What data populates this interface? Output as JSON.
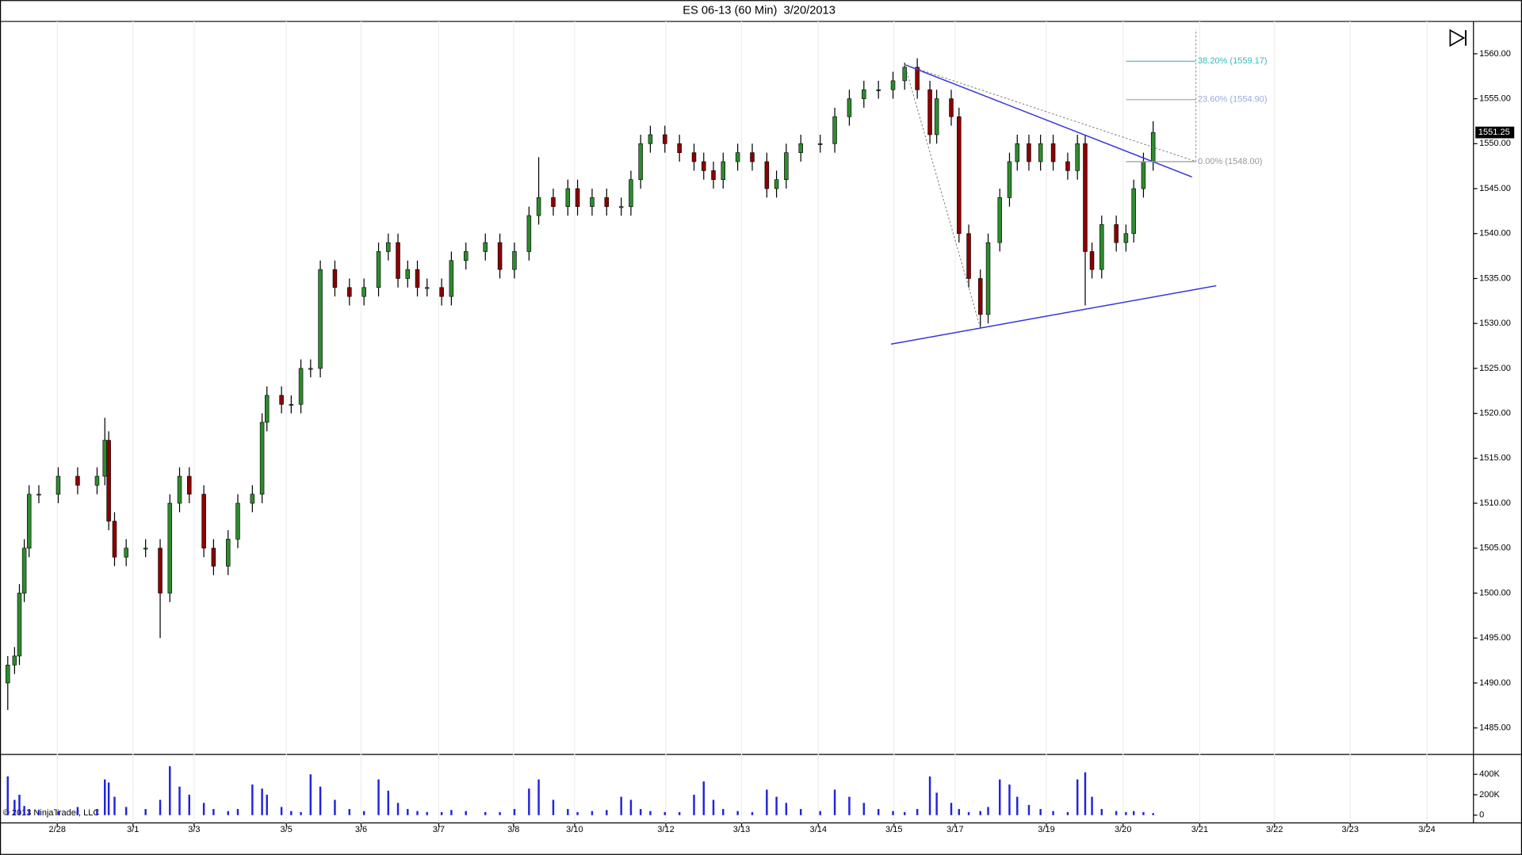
{
  "chart_data": {
    "type": "candlestick",
    "title": "ES 06-13 (60 Min)  3/20/2013",
    "copyright": "© 2013 NinjaTrader, LLC",
    "up_color": "#2e8b2e",
    "down_color": "#8b0000",
    "wick_color": "#000000",
    "x_grid": true,
    "xlim": [
      0.2,
      151.8
    ],
    "xticks": [
      {
        "value": 5.9,
        "label": "2/28"
      },
      {
        "value": 13.7,
        "label": "3/1"
      },
      {
        "value": 20.0,
        "label": "3/3"
      },
      {
        "value": 29.5,
        "label": "3/5"
      },
      {
        "value": 37.2,
        "label": "3/6"
      },
      {
        "value": 45.2,
        "label": "3/7"
      },
      {
        "value": 52.9,
        "label": "3/8"
      },
      {
        "value": 59.2,
        "label": "3/10"
      },
      {
        "value": 68.6,
        "label": "3/12"
      },
      {
        "value": 76.4,
        "label": "3/13"
      },
      {
        "value": 84.3,
        "label": "3/14"
      },
      {
        "value": 92.1,
        "label": "3/15"
      },
      {
        "value": 98.4,
        "label": "3/17"
      },
      {
        "value": 107.8,
        "label": "3/19"
      },
      {
        "value": 115.7,
        "label": "3/20"
      },
      {
        "value": 123.6,
        "label": "3/21"
      },
      {
        "value": 131.3,
        "label": "3/22"
      },
      {
        "value": 139.1,
        "label": "3/23"
      },
      {
        "value": 147.0,
        "label": "3/24"
      }
    ],
    "ylim": [
      1482.1,
      1563.6
    ],
    "yticks": [
      {
        "value": 1485,
        "label": "1485.00"
      },
      {
        "value": 1490,
        "label": "1490.00"
      },
      {
        "value": 1495,
        "label": "1495.00"
      },
      {
        "value": 1500,
        "label": "1500.00"
      },
      {
        "value": 1505,
        "label": "1505.00"
      },
      {
        "value": 1510,
        "label": "1510.00"
      },
      {
        "value": 1515,
        "label": "1515.00"
      },
      {
        "value": 1520,
        "label": "1520.00"
      },
      {
        "value": 1525,
        "label": "1525.00"
      },
      {
        "value": 1530,
        "label": "1530.00"
      },
      {
        "value": 1535,
        "label": "1535.00"
      },
      {
        "value": 1540,
        "label": "1540.00"
      },
      {
        "value": 1545,
        "label": "1545.00"
      },
      {
        "value": 1550,
        "label": "1550.00"
      },
      {
        "value": 1555,
        "label": "1555.00"
      },
      {
        "value": 1560,
        "label": "1560.00"
      }
    ],
    "x": [
      0.8,
      1.5,
      2,
      2.5,
      3,
      4,
      6,
      8,
      10,
      10.8,
      11.2,
      11.8,
      13,
      15,
      16.5,
      17.5,
      18.5,
      19.5,
      21,
      22,
      23.5,
      24.5,
      26,
      27,
      27.5,
      29,
      30,
      31,
      32,
      33,
      34.5,
      36,
      37.5,
      39,
      40,
      41,
      42,
      43,
      44,
      45.5,
      46.5,
      48,
      50,
      51.5,
      53,
      54.5,
      55.5,
      57,
      58.5,
      59.5,
      61,
      62.5,
      64,
      65,
      66,
      67,
      68.5,
      70,
      71.5,
      72.5,
      73.5,
      74.5,
      76,
      77.5,
      79,
      80,
      81,
      82.5,
      84.5,
      86,
      87.5,
      89,
      90.5,
      92,
      93.2,
      94.5,
      95.8,
      96.5,
      98,
      98.8,
      99.8,
      101,
      101.8,
      103,
      104,
      104.8,
      106,
      107.2,
      108.5,
      110,
      111,
      111.8,
      112.5,
      113.5,
      115,
      116,
      116.8,
      117.8,
      118.8
    ],
    "open": [
      1490,
      1492,
      1493,
      1500,
      1505,
      1511,
      1511,
      1513,
      1512,
      1513,
      1517,
      1508,
      1504,
      1505,
      1505,
      1500,
      1510,
      1513,
      1511,
      1505,
      1503,
      1506,
      1510,
      1511,
      1519,
      1522,
      1521,
      1521,
      1525,
      1525,
      1536,
      1534,
      1533,
      1534,
      1538,
      1539,
      1535,
      1536,
      1534,
      1534,
      1533,
      1537,
      1538,
      1539,
      1536,
      1538,
      1542,
      1544,
      1543,
      1545,
      1543,
      1544,
      1543,
      1543,
      1546,
      1550,
      1551,
      1550,
      1549,
      1548,
      1547,
      1546,
      1548,
      1549,
      1548,
      1545,
      1546,
      1549,
      1550,
      1550,
      1553,
      1555,
      1556,
      1556,
      1557,
      1558.5,
      1556,
      1551,
      1555,
      1553,
      1540,
      1535,
      1531,
      1539,
      1544,
      1548,
      1550,
      1548,
      1550,
      1548,
      1547,
      1550,
      1538,
      1536,
      1541,
      1539,
      1540,
      1545,
      1548
    ],
    "high": [
      1493,
      1494,
      1501,
      1506,
      1512,
      1512,
      1514,
      1514,
      1514,
      1519.5,
      1518,
      1509,
      1506,
      1506,
      1506,
      1511,
      1514,
      1514,
      1512,
      1506,
      1507,
      1511,
      1512,
      1520,
      1523,
      1523,
      1522,
      1526,
      1526,
      1537,
      1537,
      1535,
      1535,
      1539,
      1540,
      1540,
      1537,
      1537,
      1535,
      1535,
      1538,
      1539,
      1540,
      1540,
      1539,
      1543,
      1548.5,
      1545,
      1546,
      1546,
      1545,
      1545,
      1544,
      1547,
      1551,
      1552,
      1552,
      1551,
      1550,
      1549,
      1548,
      1549,
      1550,
      1550,
      1549,
      1547,
      1550,
      1551,
      1551,
      1554,
      1556,
      1557,
      1557,
      1558,
      1559,
      1559.5,
      1557,
      1556,
      1556,
      1554,
      1541,
      1536,
      1540,
      1545,
      1549,
      1551,
      1551,
      1551,
      1551,
      1549,
      1551,
      1551,
      1539,
      1542,
      1542,
      1541,
      1546,
      1549,
      1552.5
    ],
    "low": [
      1487,
      1491,
      1492,
      1499,
      1504,
      1510,
      1510,
      1511,
      1511,
      1512,
      1507,
      1503,
      1503,
      1504,
      1495,
      1499,
      1509,
      1510,
      1504,
      1502,
      1502,
      1505,
      1509,
      1510,
      1518,
      1520,
      1520,
      1520,
      1524,
      1524,
      1533,
      1532,
      1532,
      1533,
      1537,
      1534,
      1534,
      1533,
      1533,
      1532,
      1532,
      1536,
      1537,
      1535,
      1535,
      1537,
      1541,
      1542,
      1542,
      1542,
      1542,
      1542,
      1542,
      1542,
      1545,
      1549,
      1549,
      1548,
      1547,
      1546,
      1545,
      1545,
      1547,
      1547,
      1544,
      1544,
      1545,
      1548,
      1549,
      1549,
      1552,
      1554,
      1555,
      1555,
      1556,
      1555,
      1550,
      1550,
      1552,
      1539,
      1534,
      1529.5,
      1530,
      1538,
      1543,
      1547,
      1547,
      1547,
      1547,
      1546,
      1546,
      1532,
      1535,
      1535,
      1538,
      1538,
      1539,
      1544,
      1547
    ],
    "close": [
      1492,
      1493,
      1500,
      1505,
      1511,
      1511,
      1513,
      1512,
      1513,
      1517,
      1508,
      1504,
      1505,
      1505,
      1500,
      1510,
      1513,
      1511,
      1505,
      1503,
      1506,
      1510,
      1511,
      1519,
      1522,
      1521,
      1521,
      1525,
      1525,
      1536,
      1534,
      1533,
      1534,
      1538,
      1539,
      1535,
      1536,
      1534,
      1534,
      1533,
      1537,
      1538,
      1539,
      1536,
      1538,
      1542,
      1544,
      1543,
      1545,
      1543,
      1544,
      1543,
      1543,
      1546,
      1550,
      1551,
      1550,
      1549,
      1548,
      1547,
      1546,
      1548,
      1549,
      1548,
      1545,
      1546,
      1549,
      1550,
      1550,
      1553,
      1555,
      1556,
      1556,
      1557,
      1558.5,
      1556,
      1551,
      1555,
      1553,
      1540,
      1535,
      1531,
      1539,
      1544,
      1548,
      1550,
      1548,
      1550,
      1548,
      1547,
      1550,
      1538,
      1536,
      1541,
      1539,
      1540,
      1545,
      1548,
      1551.25
    ],
    "volume": {
      "color": "#2222dd",
      "ylim": [
        -76000,
        590000
      ],
      "yticks": [
        0,
        {
          "value": 200000,
          "label": "200K"
        },
        {
          "value": 400000,
          "label": "400K"
        }
      ],
      "values": [
        380000,
        150000,
        200000,
        90000,
        60000,
        50000,
        40000,
        80000,
        60000,
        350000,
        320000,
        180000,
        80000,
        60000,
        150000,
        480000,
        280000,
        200000,
        120000,
        60000,
        40000,
        60000,
        300000,
        260000,
        200000,
        80000,
        40000,
        30000,
        400000,
        280000,
        150000,
        60000,
        40000,
        350000,
        240000,
        120000,
        60000,
        40000,
        30000,
        30000,
        50000,
        40000,
        30000,
        30000,
        60000,
        260000,
        350000,
        150000,
        60000,
        30000,
        40000,
        50000,
        180000,
        150000,
        60000,
        40000,
        30000,
        30000,
        200000,
        330000,
        150000,
        60000,
        40000,
        30000,
        250000,
        180000,
        120000,
        60000,
        40000,
        250000,
        180000,
        120000,
        60000,
        40000,
        30000,
        60000,
        380000,
        220000,
        120000,
        60000,
        30000,
        40000,
        80000,
        350000,
        300000,
        180000,
        100000,
        60000,
        40000,
        30000,
        350000,
        420000,
        180000,
        60000,
        40000,
        30000,
        40000,
        30000,
        20000
      ]
    },
    "trendlines": [
      {
        "x": [
          93.2,
          122.8
        ],
        "y": [
          1558.8,
          1546.3
        ],
        "color": "#3333dd",
        "dash": false
      },
      {
        "x": [
          91.8,
          125.3
        ],
        "y": [
          1527.7,
          1534.2
        ],
        "color": "#3333dd",
        "dash": false
      },
      {
        "x": [
          93.2,
          123.0
        ],
        "y": [
          1558.8,
          1548.1
        ],
        "color": "#777777",
        "dash": true
      },
      {
        "x": [
          93.2,
          101.0
        ],
        "y": [
          1558.8,
          1529.5
        ],
        "color": "#777777",
        "dash": true
      }
    ],
    "fib": {
      "x": [
        116.0,
        123.2
      ],
      "levels": [
        {
          "value": 1548.0,
          "label": "0.00% (1548.00)",
          "color": "#999999"
        },
        {
          "value": 1554.9,
          "label": "23.60% (1554.90)",
          "color": "#99aadd"
        },
        {
          "value": 1559.17,
          "label": "38.20% (1559.17)",
          "color": "#33bbbb"
        }
      ]
    }
  }
}
